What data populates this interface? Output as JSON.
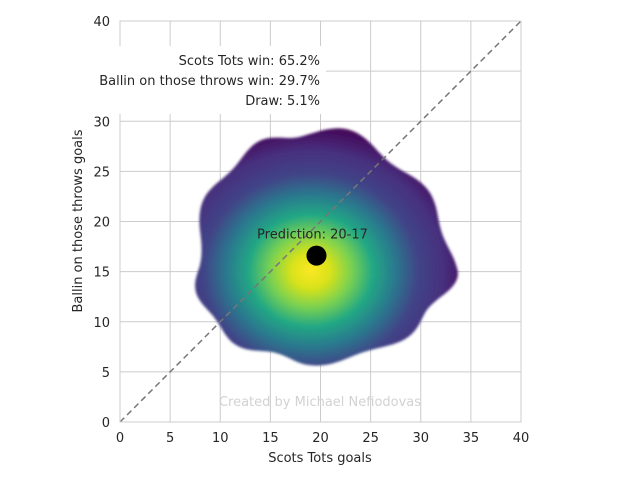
{
  "chart_data": {
    "type": "heatmap",
    "title": "",
    "xlabel": "Scots Tots goals",
    "ylabel": "Ballin on those throws goals",
    "xlim": [
      0,
      40
    ],
    "ylim": [
      0,
      40
    ],
    "x_ticks": [
      "0",
      "5",
      "10",
      "15",
      "20",
      "25",
      "30",
      "35",
      "40"
    ],
    "y_ticks": [
      "0",
      "5",
      "10",
      "15",
      "20",
      "25",
      "30",
      "35",
      "40"
    ],
    "grid": true,
    "diagonal_reference_line": true,
    "colormap": "viridis",
    "density_center": [
      18.5,
      15.5
    ],
    "density_extent": [
      7.5,
      33,
      6,
      29
    ],
    "prediction": {
      "x": 19.6,
      "y": 16.6,
      "label": "Prediction: 20-17"
    },
    "outcome_labels": [
      "Scots Tots win: 65.2%",
      "Ballin on those throws win: 29.7%",
      "Draw: 5.1%"
    ],
    "watermark": "Created by Michael Nefiodovas",
    "colors": {
      "grid": "#cccccc",
      "diagonal": "#777777",
      "marker": "#000000",
      "watermark": "#d2d2d2",
      "text": "#262626"
    }
  }
}
